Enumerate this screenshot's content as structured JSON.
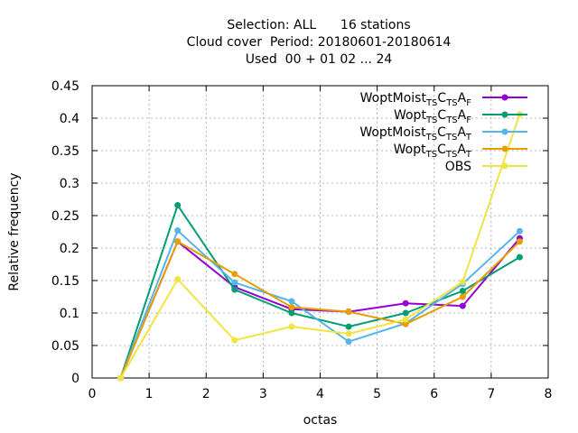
{
  "chart_data": {
    "type": "line",
    "title_lines": [
      "Selection: ALL      16 stations",
      "Cloud cover  Period: 20180601-20180614",
      "Used  00 + 01 02 ... 24"
    ],
    "xlabel": "octas",
    "ylabel": "Relative frequency",
    "xlim": [
      0,
      8
    ],
    "ylim": [
      0,
      0.45
    ],
    "x_ticks": [
      "0",
      "1",
      "2",
      "3",
      "4",
      "5",
      "6",
      "7",
      "8"
    ],
    "y_ticks": [
      "0",
      "0.05",
      "0.1",
      "0.15",
      "0.2",
      "0.25",
      "0.3",
      "0.35",
      "0.4",
      "0.45"
    ],
    "grid": true,
    "legend_position": "top-right",
    "x": [
      0.5,
      1.5,
      2.5,
      3.5,
      4.5,
      5.5,
      6.5,
      7.5
    ],
    "series": [
      {
        "name": "WoptMoist TS CTS A F",
        "label_parts": [
          [
            "WoptMoist",
            ""
          ],
          [
            "TS",
            "sub"
          ],
          [
            "C",
            ""
          ],
          [
            "TS",
            "sub"
          ],
          [
            "A",
            ""
          ],
          [
            "F",
            "sub"
          ]
        ],
        "color": "#9400d3",
        "marker": "circle",
        "values": [
          0.0,
          0.21,
          0.14,
          0.106,
          0.102,
          0.115,
          0.111,
          0.215
        ]
      },
      {
        "name": "Wopt TS CTS A F",
        "label_parts": [
          [
            "Wopt",
            ""
          ],
          [
            "TS",
            "sub"
          ],
          [
            "C",
            ""
          ],
          [
            "TS",
            "sub"
          ],
          [
            "A",
            ""
          ],
          [
            "F",
            "sub"
          ]
        ],
        "color": "#009e73",
        "marker": "circle",
        "values": [
          0.0,
          0.266,
          0.136,
          0.1,
          0.079,
          0.1,
          0.134,
          0.186
        ]
      },
      {
        "name": "WoptMoist TS CTS A T",
        "label_parts": [
          [
            "WoptMoist",
            ""
          ],
          [
            "TS",
            "sub"
          ],
          [
            "C",
            ""
          ],
          [
            "TS",
            "sub"
          ],
          [
            "A",
            ""
          ],
          [
            "T",
            "sub"
          ]
        ],
        "color": "#56b4e9",
        "marker": "circle",
        "values": [
          0.0,
          0.227,
          0.147,
          0.118,
          0.056,
          0.084,
          0.145,
          0.226
        ]
      },
      {
        "name": "Wopt TS CTS A T",
        "label_parts": [
          [
            "Wopt",
            ""
          ],
          [
            "TS",
            "sub"
          ],
          [
            "C",
            ""
          ],
          [
            "TS",
            "sub"
          ],
          [
            "A",
            ""
          ],
          [
            "T",
            "sub"
          ]
        ],
        "color": "#e69f00",
        "marker": "circle",
        "values": [
          0.0,
          0.21,
          0.16,
          0.109,
          0.102,
          0.083,
          0.125,
          0.21
        ]
      },
      {
        "name": "OBS",
        "label_parts": [
          [
            "OBS",
            ""
          ]
        ],
        "color": "#f0e442",
        "marker": "circle",
        "values": [
          0.0,
          0.152,
          0.058,
          0.079,
          0.068,
          0.09,
          0.148,
          0.406
        ]
      }
    ]
  }
}
